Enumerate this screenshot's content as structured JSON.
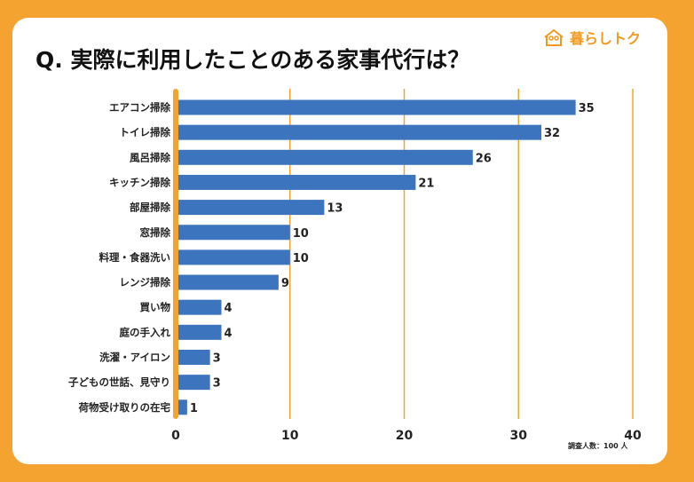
{
  "title": "Q. 実際に利用したことのある家事代行は？",
  "logo": "暮らしトク",
  "note": "調査人数：100 人",
  "colors": {
    "bar": "#3C75BE",
    "accent": "#F5A330"
  },
  "chart_data": {
    "type": "bar",
    "orientation": "horizontal",
    "categories": [
      "エアコン掃除",
      "トイレ掃除",
      "風呂掃除",
      "キッチン掃除",
      "部屋掃除",
      "窓掃除",
      "料理・食器洗い",
      "レンジ掃除",
      "買い物",
      "庭の手入れ",
      "洗濯・アイロン",
      "子どもの世話、見守り",
      "荷物受け取りの在宅"
    ],
    "values": [
      35,
      32,
      26,
      21,
      13,
      10,
      10,
      9,
      4,
      4,
      3,
      3,
      1
    ],
    "xlim": [
      0,
      40
    ],
    "xticks": [
      0,
      10,
      20,
      30,
      40
    ],
    "grid": true
  }
}
